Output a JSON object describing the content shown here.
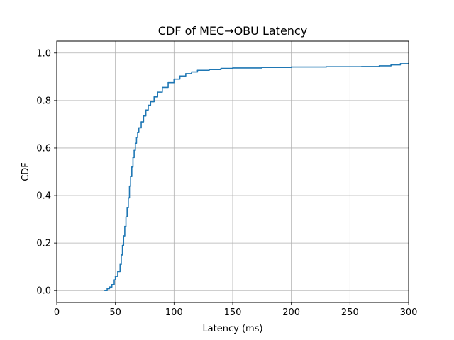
{
  "chart_data": {
    "type": "line",
    "title": "CDF of MEC→OBU Latency",
    "xlabel": "Latency (ms)",
    "ylabel": "CDF",
    "xlim": [
      0,
      300
    ],
    "ylim": [
      -0.05,
      1.05
    ],
    "xticks": [
      0,
      50,
      100,
      150,
      200,
      250,
      300
    ],
    "yticks": [
      0.0,
      0.2,
      0.4,
      0.6,
      0.8,
      1.0
    ],
    "xtick_labels": [
      "0",
      "50",
      "100",
      "150",
      "200",
      "250",
      "300"
    ],
    "ytick_labels": [
      "0.0",
      "0.2",
      "0.4",
      "0.6",
      "0.8",
      "1.0"
    ],
    "grid": true,
    "series": [
      {
        "color": "#1f77b4",
        "x": [
          41,
          43,
          45,
          47,
          49,
          50,
          52,
          54,
          55,
          56,
          57,
          58,
          59,
          60,
          61,
          62,
          63,
          64,
          65,
          66,
          67,
          68,
          69,
          70,
          72,
          74,
          76,
          78,
          80,
          83,
          86,
          90,
          95,
          100,
          105,
          110,
          115,
          120,
          130,
          140,
          150,
          175,
          200,
          230,
          260,
          275,
          285,
          293,
          300
        ],
        "y": [
          0.0,
          0.008,
          0.015,
          0.025,
          0.045,
          0.06,
          0.08,
          0.11,
          0.15,
          0.19,
          0.23,
          0.27,
          0.31,
          0.35,
          0.39,
          0.44,
          0.48,
          0.52,
          0.56,
          0.59,
          0.62,
          0.645,
          0.665,
          0.685,
          0.71,
          0.735,
          0.76,
          0.78,
          0.795,
          0.815,
          0.835,
          0.855,
          0.875,
          0.89,
          0.903,
          0.913,
          0.92,
          0.927,
          0.93,
          0.935,
          0.937,
          0.939,
          0.941,
          0.942,
          0.943,
          0.946,
          0.95,
          0.955,
          0.957
        ]
      }
    ]
  }
}
